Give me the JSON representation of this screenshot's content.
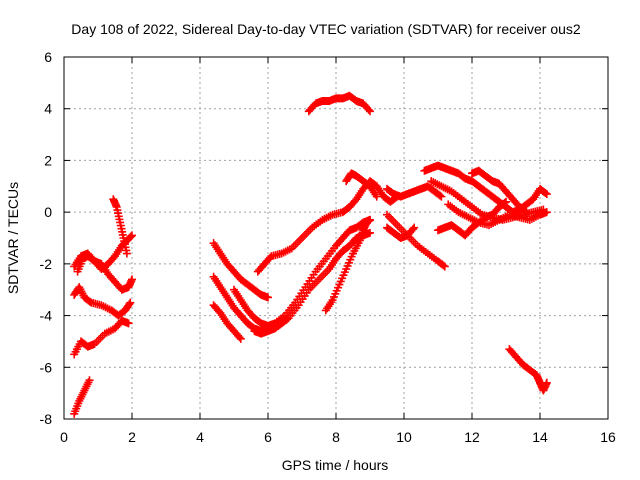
{
  "chart_data": {
    "type": "scatter",
    "title": "Day 108 of 2022, Sidereal Day-to-day VTEC variation (SDTVAR) for receiver ous2",
    "xlabel": "GPS time / hours",
    "ylabel": "SDTVAR / TECUs",
    "xlim": [
      0,
      16
    ],
    "ylim": [
      -8,
      6
    ],
    "xticks": [
      "0",
      "2",
      "4",
      "6",
      "8",
      "10",
      "12",
      "14",
      "16"
    ],
    "yticks": [
      "-8",
      "-6",
      "-4",
      "-2",
      "0",
      "2",
      "4",
      "6"
    ],
    "grid": true,
    "marker": "+",
    "color": "#ff0000",
    "series": [
      {
        "x": [
          0.3,
          0.45,
          0.6,
          0.75
        ],
        "y": [
          -7.8,
          -7.3,
          -6.9,
          -6.5
        ]
      },
      {
        "x": [
          0.3,
          0.5,
          0.7,
          0.9,
          1.2,
          1.5,
          1.7,
          1.9
        ],
        "y": [
          -5.5,
          -5.0,
          -5.2,
          -5.1,
          -4.7,
          -4.5,
          -4.2,
          -4.3
        ]
      },
      {
        "x": [
          0.3,
          0.45,
          0.6,
          0.8,
          1.1,
          1.4,
          1.6,
          1.8,
          1.95
        ],
        "y": [
          -3.2,
          -2.9,
          -3.3,
          -3.5,
          -3.6,
          -3.8,
          -4.0,
          -3.8,
          -3.5
        ]
      },
      {
        "x": [
          0.4,
          0.55,
          0.7,
          0.9,
          1.1,
          1.3,
          1.5,
          1.7,
          1.9,
          2.0
        ],
        "y": [
          -2.3,
          -1.8,
          -1.7,
          -1.9,
          -2.0,
          -2.4,
          -2.7,
          -3.0,
          -2.9,
          -2.6
        ]
      },
      {
        "x": [
          0.3,
          0.5,
          0.7,
          0.9,
          1.1,
          1.3,
          1.5,
          1.7,
          1.85,
          2.0
        ],
        "y": [
          -2.1,
          -1.7,
          -1.6,
          -1.9,
          -2.2,
          -2.0,
          -1.7,
          -1.3,
          -1.1,
          -0.9
        ]
      },
      {
        "x": [
          1.45,
          1.55,
          1.65,
          1.75,
          1.85
        ],
        "y": [
          0.5,
          0.2,
          -0.4,
          -1.0,
          -1.6
        ]
      },
      {
        "x": [
          4.4,
          4.6,
          4.8,
          5.0,
          5.2,
          5.4,
          5.6,
          5.8,
          6.0
        ],
        "y": [
          -1.2,
          -1.6,
          -2.0,
          -2.3,
          -2.6,
          -2.8,
          -3.0,
          -3.2,
          -3.3
        ]
      },
      {
        "x": [
          4.4,
          4.6,
          4.8,
          5.0,
          5.2,
          5.4,
          5.6,
          5.8,
          6.0,
          6.3,
          6.6,
          6.9,
          7.2,
          7.5,
          7.8,
          8.0,
          8.2,
          8.4,
          8.6,
          8.8,
          9.0
        ],
        "y": [
          -2.5,
          -2.9,
          -3.3,
          -3.7,
          -4.0,
          -4.3,
          -4.5,
          -4.6,
          -4.5,
          -4.4,
          -4.1,
          -3.6,
          -3.0,
          -2.6,
          -2.2,
          -1.8,
          -1.5,
          -1.3,
          -1.0,
          -0.9,
          -0.8
        ]
      },
      {
        "x": [
          4.4,
          4.6,
          4.8,
          5.0,
          5.2
        ],
        "y": [
          -3.6,
          -3.9,
          -4.3,
          -4.6,
          -4.9
        ]
      },
      {
        "x": [
          5.0,
          5.2,
          5.4,
          5.6,
          5.8,
          6.0,
          6.2,
          6.5,
          6.8,
          7.1,
          7.4,
          7.7,
          8.0,
          8.2,
          8.4,
          8.6,
          8.8,
          9.0
        ],
        "y": [
          -3.0,
          -3.4,
          -3.8,
          -4.1,
          -4.3,
          -4.4,
          -4.3,
          -4.0,
          -3.5,
          -2.9,
          -2.3,
          -1.8,
          -1.3,
          -1.0,
          -0.7,
          -0.6,
          -0.4,
          -0.3
        ]
      },
      {
        "x": [
          5.6,
          5.8,
          6.0,
          6.2,
          6.4,
          6.6
        ],
        "y": [
          -4.6,
          -4.7,
          -4.6,
          -4.5,
          -4.3,
          -4.1
        ]
      },
      {
        "x": [
          5.7,
          5.9,
          6.1,
          6.4,
          6.7,
          7.0,
          7.3,
          7.6,
          7.9,
          8.2,
          8.4,
          8.6,
          8.8,
          9.0,
          9.2,
          9.4,
          9.6,
          9.8
        ],
        "y": [
          -2.3,
          -2.0,
          -1.7,
          -1.6,
          -1.4,
          -1.0,
          -0.6,
          -0.3,
          -0.1,
          0.0,
          0.2,
          0.5,
          0.9,
          1.2,
          1.0,
          0.6,
          0.4,
          0.6
        ]
      },
      {
        "x": [
          7.7,
          7.9,
          8.1,
          8.3,
          8.5,
          8.7,
          8.8,
          8.9,
          9.0
        ],
        "y": [
          -3.8,
          -3.4,
          -2.8,
          -2.2,
          -1.6,
          -1.1,
          -0.7,
          -0.4,
          -0.3
        ]
      },
      {
        "x": [
          7.2,
          7.4,
          7.6,
          7.8,
          8.0,
          8.2,
          8.4,
          8.6,
          8.8,
          9.0
        ],
        "y": [
          3.9,
          4.2,
          4.3,
          4.3,
          4.4,
          4.4,
          4.5,
          4.3,
          4.2,
          3.9
        ]
      },
      {
        "x": [
          8.3,
          8.45,
          8.6,
          8.8,
          9.0,
          9.2
        ],
        "y": [
          1.2,
          1.5,
          1.4,
          1.2,
          1.0,
          0.6
        ]
      },
      {
        "x": [
          9.5,
          9.8,
          10.1,
          10.4,
          10.7,
          11.0,
          11.2
        ],
        "y": [
          -0.1,
          -0.5,
          -0.9,
          -1.3,
          -1.6,
          -1.9,
          -2.1
        ]
      },
      {
        "x": [
          9.5,
          9.7,
          9.9,
          10.1,
          10.3,
          10.5,
          10.7,
          10.9,
          11.1
        ],
        "y": [
          0.9,
          0.7,
          0.6,
          0.7,
          0.8,
          0.9,
          1.0,
          0.8,
          0.6
        ]
      },
      {
        "x": [
          9.5,
          9.7,
          9.9,
          10.1,
          10.3
        ],
        "y": [
          -0.6,
          -0.8,
          -1.0,
          -0.9,
          -0.6
        ]
      },
      {
        "x": [
          10.6,
          10.8,
          11.0,
          11.2,
          11.4,
          11.6,
          11.8,
          12.0,
          12.2,
          12.4,
          12.6,
          12.8,
          13.0,
          13.2,
          13.4,
          13.6,
          13.8,
          14.0,
          14.2
        ],
        "y": [
          1.6,
          1.7,
          1.8,
          1.7,
          1.6,
          1.5,
          1.3,
          1.2,
          1.0,
          0.8,
          0.6,
          0.4,
          0.2,
          0.0,
          0.1,
          0.3,
          0.5,
          0.9,
          0.7
        ]
      },
      {
        "x": [
          10.8,
          11.1,
          11.4,
          11.7,
          12.0,
          12.3,
          12.6,
          12.9,
          13.2,
          13.5,
          13.8,
          14.1
        ],
        "y": [
          1.2,
          1.0,
          0.8,
          0.5,
          0.2,
          -0.1,
          -0.2,
          -0.3,
          -0.2,
          -0.1,
          0.0,
          0.1
        ]
      },
      {
        "x": [
          11.0,
          11.2,
          11.4,
          11.6,
          11.8,
          12.0,
          12.2,
          12.4,
          12.6,
          12.8,
          13.0
        ],
        "y": [
          -0.7,
          -0.6,
          -0.5,
          -0.7,
          -0.9,
          -0.6,
          -0.4,
          -0.2,
          -0.1,
          0.2,
          0.4
        ]
      },
      {
        "x": [
          11.3,
          11.6,
          11.9,
          12.2,
          12.5,
          12.8,
          13.1,
          13.4,
          13.7,
          14.0,
          14.2
        ],
        "y": [
          0.3,
          0.0,
          -0.2,
          -0.4,
          -0.5,
          -0.3,
          -0.1,
          -0.2,
          -0.3,
          -0.1,
          0.0
        ]
      },
      {
        "x": [
          12.0,
          12.2,
          12.4,
          12.6,
          12.8,
          13.0,
          13.2,
          13.4,
          13.6
        ],
        "y": [
          1.5,
          1.6,
          1.4,
          1.2,
          1.1,
          0.8,
          0.5,
          0.2,
          0.0
        ]
      },
      {
        "x": [
          13.1,
          13.3,
          13.5,
          13.7,
          13.9,
          14.0,
          14.1,
          14.2
        ],
        "y": [
          -5.3,
          -5.6,
          -5.9,
          -6.1,
          -6.3,
          -6.6,
          -6.9,
          -6.6
        ]
      }
    ]
  }
}
